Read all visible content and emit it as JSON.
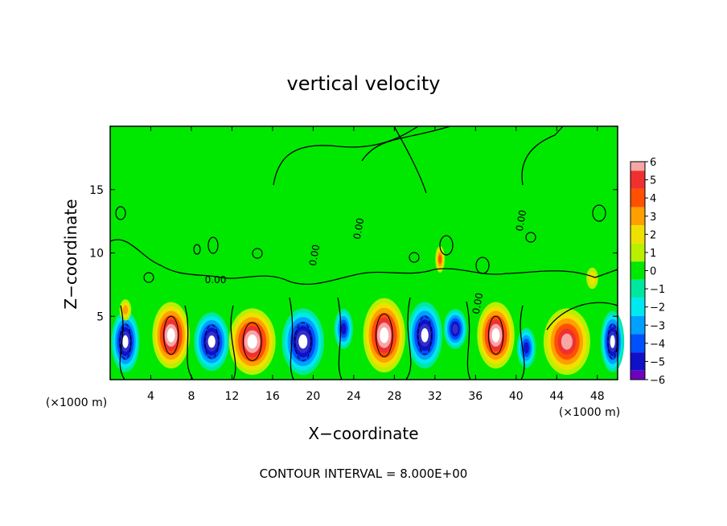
{
  "chart_data": {
    "type": "heatmap",
    "title": "vertical velocity",
    "xlabel": "X−coordinate",
    "ylabel": "Z−coordinate",
    "x_unit": "(×1000 m)",
    "xlim": [
      0,
      50
    ],
    "ylim": [
      0,
      20
    ],
    "x_ticks": [
      4,
      8,
      12,
      16,
      20,
      24,
      28,
      32,
      36,
      40,
      44,
      48
    ],
    "y_ticks": [
      5,
      10,
      15
    ],
    "colorbar": {
      "ticks": [
        6,
        5,
        4,
        3,
        2,
        1,
        0,
        -1,
        -2,
        -3,
        -4,
        -5,
        -6
      ],
      "tick_labels": [
        "6",
        "5",
        "4",
        "3",
        "2",
        "1",
        "0",
        "−1",
        "−2",
        "−3",
        "−4",
        "−5",
        "−6"
      ],
      "colors": [
        "#f7a6a6",
        "#f03030",
        "#ff5000",
        "#ffa000",
        "#f0e000",
        "#b8f000",
        "#00e800",
        "#00e8a0",
        "#00e8f0",
        "#00a0ff",
        "#0050ff",
        "#1010c8",
        "#7000c0"
      ]
    },
    "contour_labels": [
      "0.00",
      "0.00",
      "0.00",
      "0.00",
      "0.00"
    ],
    "contour_interval_text": "CONTOUR INTERVAL = 8.000E+00",
    "cells": [
      {
        "x": 1.5,
        "z": 3.0,
        "w": -7,
        "rx": 1.2,
        "rz": 2.3
      },
      {
        "x": 6.0,
        "z": 3.5,
        "w": 7,
        "rx": 1.6,
        "rz": 2.5
      },
      {
        "x": 10.0,
        "z": 3.0,
        "w": -7,
        "rx": 1.5,
        "rz": 2.2
      },
      {
        "x": 14.0,
        "z": 3.0,
        "w": 7,
        "rx": 2.0,
        "rz": 2.5
      },
      {
        "x": 19.0,
        "z": 3.0,
        "w": -7,
        "rx": 1.8,
        "rz": 2.5
      },
      {
        "x": 23.0,
        "z": 4.0,
        "w": -5,
        "rx": 0.8,
        "rz": 1.5
      },
      {
        "x": 27.0,
        "z": 3.5,
        "w": 7,
        "rx": 1.8,
        "rz": 2.8
      },
      {
        "x": 31.0,
        "z": 3.5,
        "w": -7,
        "rx": 1.5,
        "rz": 2.5
      },
      {
        "x": 34.0,
        "z": 4.0,
        "w": -6,
        "rx": 1.0,
        "rz": 1.5
      },
      {
        "x": 38.0,
        "z": 3.5,
        "w": 7,
        "rx": 1.6,
        "rz": 2.5
      },
      {
        "x": 41.0,
        "z": 2.5,
        "w": -5,
        "rx": 0.8,
        "rz": 1.5
      },
      {
        "x": 45.0,
        "z": 3.0,
        "w": 6,
        "rx": 2.0,
        "rz": 2.5
      },
      {
        "x": 49.5,
        "z": 3.0,
        "w": -7,
        "rx": 1.0,
        "rz": 2.3
      },
      {
        "x": 32.5,
        "z": 9.5,
        "w": 4,
        "rx": 0.4,
        "rz": 1.0
      },
      {
        "x": 1.5,
        "z": 5.5,
        "w": 3,
        "rx": 0.5,
        "rz": 0.8
      },
      {
        "x": 47.5,
        "z": 8.0,
        "w": 2,
        "rx": 0.5,
        "rz": 0.8
      }
    ]
  }
}
